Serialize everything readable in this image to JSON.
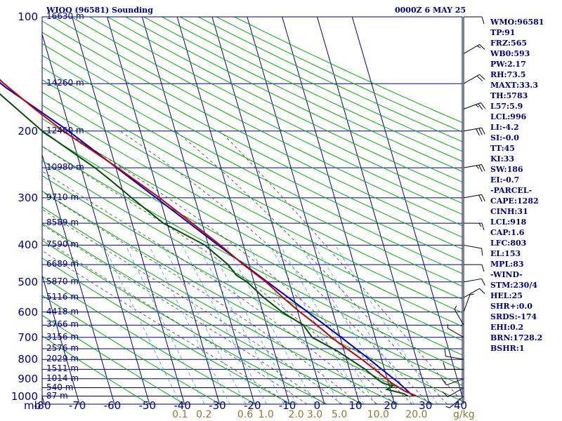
{
  "header": {
    "station_title": "WIOO (96581) Sounding",
    "valid_time": "0000Z  6 MAY 25"
  },
  "colors": {
    "frame": "#000080",
    "isotherm": "#000080",
    "isobar": "#000080",
    "dry_adiabat": "#00b000",
    "moist_adiabat": "#404040",
    "mixing_ratio": "#3aa0e0",
    "temperature": "#cc0000",
    "dewpoint": "#005000",
    "parcel": "#0000cc",
    "wind_barb": "#000000",
    "mixing_ratio_label": "#8a7a30"
  },
  "chart_data": {
    "type": "skew-t log-p",
    "pressure_axis": {
      "unit": "mb",
      "range": [
        1000,
        100
      ],
      "scale": "log",
      "tick_labels": [
        "100",
        "200",
        "300",
        "400",
        "500",
        "600",
        "700",
        "800",
        "900",
        "1000"
      ]
    },
    "temperature_axis": {
      "range": [
        -80,
        40
      ],
      "tick_labels": [
        "-80",
        "-70",
        "-60",
        "-50",
        "-40",
        "-30",
        "-20",
        "-10",
        "0",
        "10",
        "20",
        "30",
        "40"
      ]
    },
    "axis_unit_left": "mb",
    "mixing_ratio_labels": [
      {
        "g_kg": 0.1,
        "text": "0.1"
      },
      {
        "g_kg": 0.2,
        "text": "0.2"
      },
      {
        "g_kg": 0.6,
        "text": "0.6"
      },
      {
        "g_kg": 1.0,
        "text": "1.0"
      },
      {
        "g_kg": 2.0,
        "text": "2.0"
      },
      {
        "g_kg": 3.0,
        "text": "3.0"
      },
      {
        "g_kg": 5.0,
        "text": "5.0"
      },
      {
        "g_kg": 10.0,
        "text": "10.0"
      },
      {
        "g_kg": 20.0,
        "text": "20.0"
      }
    ],
    "mixing_ratio_unit": "g/kg",
    "height_labels": [
      {
        "p": 100,
        "text": "16630 m"
      },
      {
        "p": 150,
        "text": "14260 m"
      },
      {
        "p": 200,
        "text": "12460 m"
      },
      {
        "p": 250,
        "text": "10980 m"
      },
      {
        "p": 300,
        "text": "9710 m"
      },
      {
        "p": 350,
        "text": "8589 m"
      },
      {
        "p": 400,
        "text": "7590 m"
      },
      {
        "p": 450,
        "text": "6689 m"
      },
      {
        "p": 500,
        "text": "5870 m"
      },
      {
        "p": 550,
        "text": "5116 m"
      },
      {
        "p": 600,
        "text": "4418 m"
      },
      {
        "p": 650,
        "text": "3766 m"
      },
      {
        "p": 700,
        "text": "3156 m"
      },
      {
        "p": 750,
        "text": "2576 m"
      },
      {
        "p": 800,
        "text": "2029 m"
      },
      {
        "p": 850,
        "text": "1511 m"
      },
      {
        "p": 900,
        "text": "1014 m"
      },
      {
        "p": 950,
        "text": "540 m"
      },
      {
        "p": 1000,
        "text": "87 m"
      }
    ],
    "temperature_profile": [
      {
        "p": 1000,
        "t": 27.0
      },
      {
        "p": 970,
        "t": 24.0
      },
      {
        "p": 925,
        "t": 21.0
      },
      {
        "p": 850,
        "t": 17.2
      },
      {
        "p": 800,
        "t": 14.4
      },
      {
        "p": 750,
        "t": 11.0
      },
      {
        "p": 700,
        "t": 7.5
      },
      {
        "p": 650,
        "t": 4.4
      },
      {
        "p": 600,
        "t": 0.6
      },
      {
        "p": 550,
        "t": -3.0
      },
      {
        "p": 500,
        "t": -6.6
      },
      {
        "p": 450,
        "t": -11.6
      },
      {
        "p": 400,
        "t": -16.6
      },
      {
        "p": 350,
        "t": -22.8
      },
      {
        "p": 300,
        "t": -30.0
      },
      {
        "p": 250,
        "t": -39.5
      },
      {
        "p": 200,
        "t": -52.0
      },
      {
        "p": 175,
        "t": -58.3
      },
      {
        "p": 150,
        "t": -65.0
      },
      {
        "p": 125,
        "t": -71.5
      },
      {
        "p": 100,
        "t": -79.5
      }
    ],
    "dewpoint_profile": [
      {
        "p": 1000,
        "td": 24.5
      },
      {
        "p": 985,
        "td": 23.5
      },
      {
        "p": 960,
        "td": 19.0
      },
      {
        "p": 940,
        "td": 21.0
      },
      {
        "p": 925,
        "td": 18.5
      },
      {
        "p": 900,
        "td": 17.0
      },
      {
        "p": 850,
        "td": 14.5
      },
      {
        "p": 800,
        "td": 11.0
      },
      {
        "p": 760,
        "td": 8.0
      },
      {
        "p": 700,
        "td": 2.0
      },
      {
        "p": 650,
        "td": 0.5
      },
      {
        "p": 600,
        "td": -4.5
      },
      {
        "p": 550,
        "td": -8.5
      },
      {
        "p": 500,
        "td": -12.0
      },
      {
        "p": 480,
        "td": -14.5
      },
      {
        "p": 450,
        "td": -16.0
      },
      {
        "p": 400,
        "td": -21.0
      },
      {
        "p": 350,
        "td": -31.0
      },
      {
        "p": 300,
        "td": -38.0
      },
      {
        "p": 270,
        "td": -42.5
      },
      {
        "p": 250,
        "td": -46.0
      },
      {
        "p": 200,
        "td": -58.0
      },
      {
        "p": 160,
        "td": -67.0
      },
      {
        "p": 150,
        "td": -68.0
      }
    ],
    "parcel_profile": [
      {
        "p": 1000,
        "t": 26.0
      },
      {
        "p": 918,
        "t": 22.8
      },
      {
        "p": 850,
        "t": 19.2
      },
      {
        "p": 800,
        "t": 16.6
      },
      {
        "p": 700,
        "t": 10.3
      },
      {
        "p": 600,
        "t": 2.8
      },
      {
        "p": 500,
        "t": -6.2
      },
      {
        "p": 400,
        "t": -17.2
      },
      {
        "p": 300,
        "t": -31.0
      },
      {
        "p": 250,
        "t": -39.8
      },
      {
        "p": 200,
        "t": -50.5
      },
      {
        "p": 153,
        "t": -65.0
      },
      {
        "p": 100,
        "t": -83.0
      }
    ],
    "wind_barbs": [
      {
        "p": 1000,
        "dir": 230,
        "spd": 5
      },
      {
        "p": 950,
        "dir": 240,
        "spd": 10
      },
      {
        "p": 900,
        "dir": 250,
        "spd": 10
      },
      {
        "p": 850,
        "dir": 270,
        "spd": 10
      },
      {
        "p": 800,
        "dir": 280,
        "spd": 10
      },
      {
        "p": 700,
        "dir": 300,
        "spd": 5
      },
      {
        "p": 650,
        "dir": 330,
        "spd": 5
      },
      {
        "p": 600,
        "dir": 20,
        "spd": 5
      },
      {
        "p": 550,
        "dir": 60,
        "spd": 10
      },
      {
        "p": 500,
        "dir": 80,
        "spd": 10
      },
      {
        "p": 450,
        "dir": 90,
        "spd": 10
      },
      {
        "p": 400,
        "dir": 100,
        "spd": 10
      },
      {
        "p": 350,
        "dir": 90,
        "spd": 15
      },
      {
        "p": 300,
        "dir": 80,
        "spd": 20
      },
      {
        "p": 250,
        "dir": 80,
        "spd": 25
      },
      {
        "p": 200,
        "dir": 80,
        "spd": 30
      },
      {
        "p": 175,
        "dir": 70,
        "spd": 25
      },
      {
        "p": 150,
        "dir": 60,
        "spd": 20
      },
      {
        "p": 125,
        "dir": 60,
        "spd": 15
      },
      {
        "p": 100,
        "dir": 90,
        "spd": 10
      }
    ]
  },
  "stats": [
    "WMO:96581",
    "TP:91",
    "FRZ:565",
    "WB0:593",
    "PW:2.17",
    "RH:73.5",
    "MAXT:33.3",
    "TH:5783",
    "L57:5.9",
    "LCL:996",
    "LI:-4.2",
    "SI:-0.0",
    "TT:45",
    "KI:33",
    "SW:186",
    "EI:-0.7",
    "-PARCEL-",
    "CAPE:1282",
    "CINH:31",
    "LCL:918",
    "CAP:1.6",
    "LFC:803",
    "EL:153",
    "MPL:83",
    "-WIND-",
    "STM:230/4",
    "HEL:25",
    "SHR+:0.0",
    "SRDS:-174",
    "EHI:0.2",
    "BRN:1728.2",
    "BSHR:1"
  ]
}
